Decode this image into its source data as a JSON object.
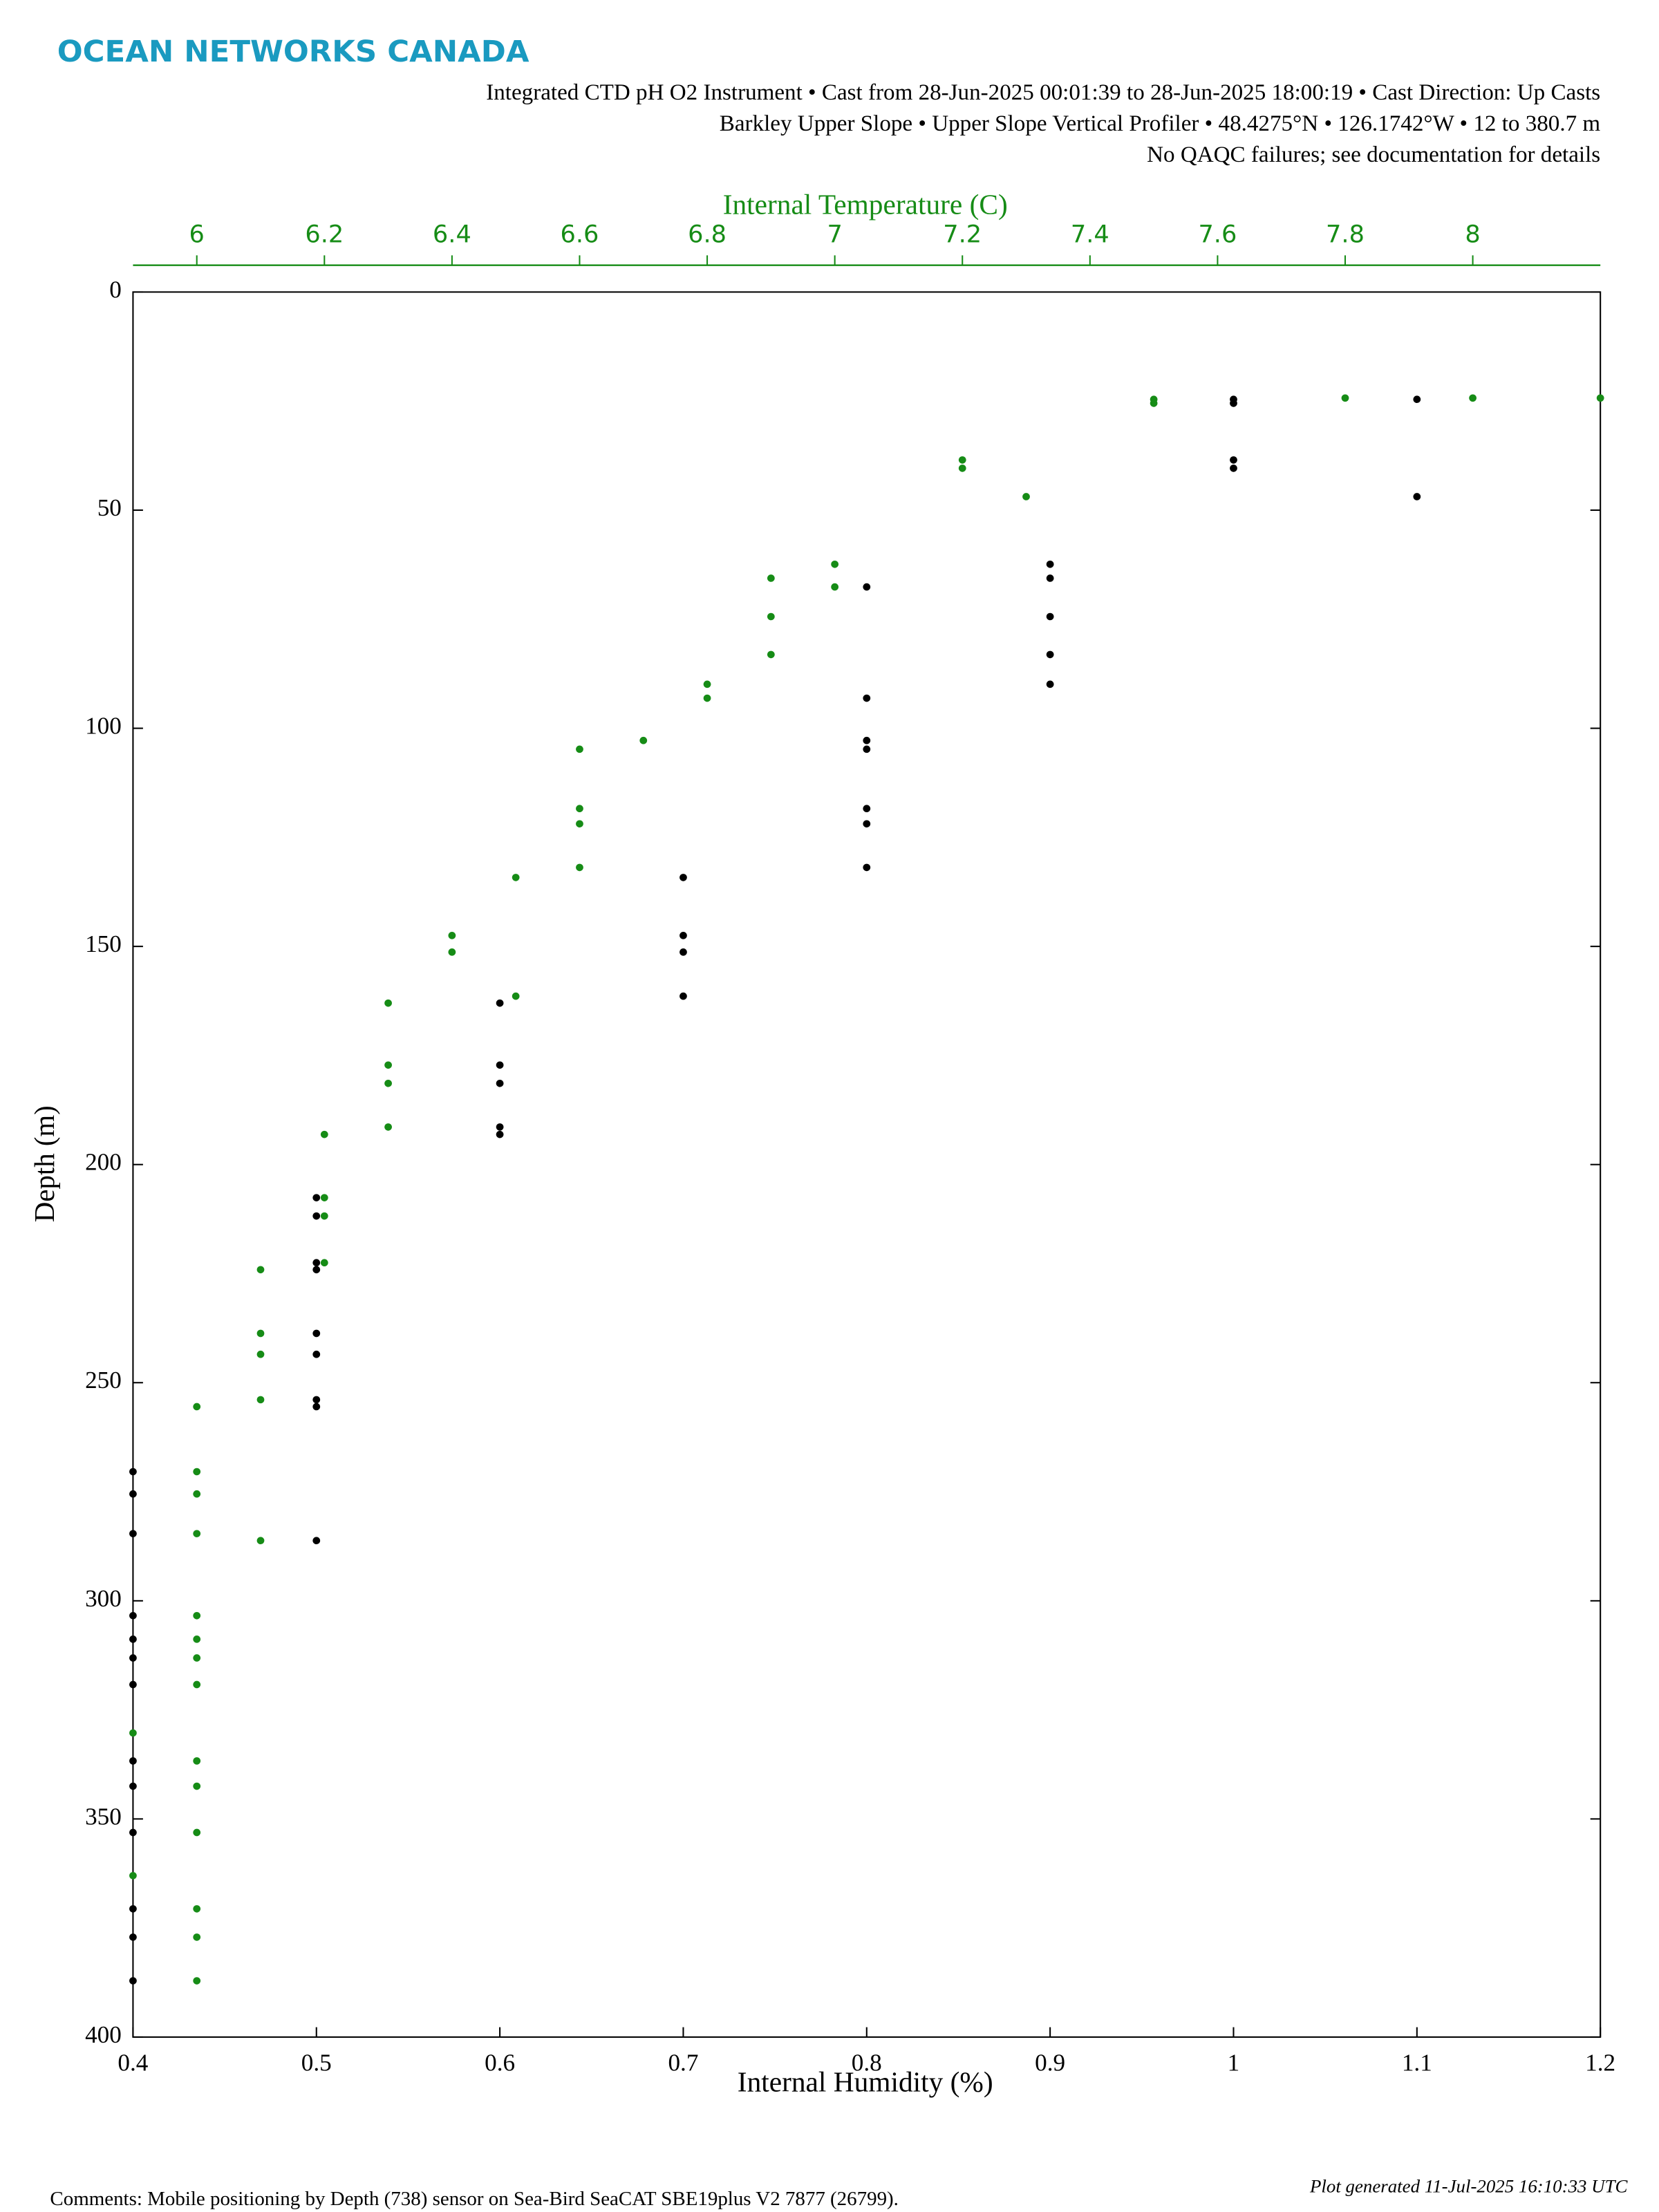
{
  "chart_data": {
    "type": "scatter",
    "brand": "OCEAN NETWORKS CANADA",
    "header_lines": [
      "Integrated CTD pH O2 Instrument • Cast from 28-Jun-2025 00:01:39 to 28-Jun-2025 18:00:19 • Cast Direction: Up Casts",
      "Barkley Upper Slope • Upper Slope Vertical Profiler • 48.4275°N • 126.1742°W • 12 to 380.7 m",
      "No QAQC failures; see documentation for details"
    ],
    "xlabel": "Internal Humidity (%)",
    "x2label": "Internal Temperature (C)",
    "ylabel": "Depth (m)",
    "footer_left": "Comments: Mobile positioning by Depth (738) sensor on Sea-Bird SeaCAT SBE19plus V2 7877 (26799).",
    "footer_right": "Plot generated 11-Jul-2025 16:10:33 UTC",
    "xlim": [
      0.4,
      1.2
    ],
    "xticks": [
      0.4,
      0.5,
      0.6,
      0.7,
      0.8,
      0.9,
      1,
      1.1,
      1.2
    ],
    "x2lim": [
      5.9,
      8.2
    ],
    "x2ticks": [
      6,
      6.2,
      6.4,
      6.6,
      6.8,
      7,
      7.2,
      7.4,
      7.6,
      7.8,
      8
    ],
    "x2color": "#168c16",
    "ylim": [
      0,
      400
    ],
    "yticks": [
      0,
      50,
      100,
      150,
      200,
      250,
      300,
      350,
      400
    ],
    "y_inverted": true,
    "series": [
      {
        "color": "#000000",
        "axis": "x",
        "x": [
          1.0,
          1.0,
          1.0,
          1.0,
          1.1,
          1.1,
          0.9,
          0.9,
          0.9,
          0.9,
          0.9,
          0.8,
          0.8,
          0.8,
          0.8,
          0.8,
          0.8,
          0.8,
          0.7,
          0.7,
          0.7,
          0.7,
          0.6,
          0.6,
          0.6,
          0.6,
          0.6,
          0.5,
          0.5,
          0.5,
          0.5,
          0.5,
          0.5,
          0.5,
          0.5,
          0.5,
          0.4,
          0.4,
          0.4,
          0.4,
          0.4,
          0.4,
          0.4,
          0.4,
          0.4,
          0.4,
          0.4,
          0.4,
          0.4
        ],
        "values": [
          24.6,
          25.5,
          38.5,
          40.4,
          24.6,
          46.9,
          62.4,
          65.6,
          74.4,
          83.1,
          89.9,
          67.6,
          93.1,
          102.8,
          104.8,
          118.4,
          121.9,
          131.9,
          134.2,
          147.5,
          151.3,
          161.4,
          163.0,
          177.2,
          181.4,
          191.4,
          193.1,
          207.6,
          211.8,
          222.5,
          224.1,
          238.7,
          243.5,
          253.9,
          255.5,
          286.2,
          270.4,
          275.5,
          284.6,
          303.4,
          308.8,
          313.1,
          319.2,
          336.7,
          342.5,
          353.1,
          370.6,
          377.1,
          387.1
        ]
      },
      {
        "color": "#168c16",
        "axis": "x2",
        "x": [
          8.2,
          8.0,
          7.8,
          7.5,
          7.5,
          7.2,
          7.2,
          7.3,
          7.0,
          7.0,
          6.9,
          6.9,
          6.9,
          6.8,
          6.8,
          6.7,
          6.6,
          6.6,
          6.6,
          6.6,
          6.5,
          6.5,
          6.4,
          6.4,
          6.3,
          6.3,
          6.3,
          6.3,
          6.2,
          6.2,
          6.2,
          6.2,
          6.1,
          6.1,
          6.1,
          6.1,
          6.1,
          6.0,
          6.0,
          6.0,
          6.0,
          6.0,
          6.0,
          6.0,
          6.0,
          6.0,
          6.0,
          6.0,
          6.0,
          6.0,
          6.0,
          5.9,
          5.9
        ],
        "values": [
          24.3,
          24.3,
          24.3,
          24.6,
          25.5,
          38.5,
          40.4,
          46.9,
          62.4,
          67.6,
          65.6,
          74.4,
          83.1,
          89.9,
          93.1,
          102.8,
          104.8,
          118.4,
          121.9,
          131.9,
          134.2,
          161.4,
          147.5,
          151.3,
          163.0,
          177.2,
          181.4,
          191.4,
          193.1,
          207.6,
          211.8,
          222.5,
          224.1,
          238.7,
          243.5,
          253.9,
          286.2,
          255.5,
          270.4,
          275.5,
          284.6,
          303.4,
          308.8,
          313.1,
          319.2,
          336.7,
          342.5,
          353.1,
          370.6,
          377.1,
          387.1,
          330.3,
          363.0
        ]
      }
    ]
  }
}
